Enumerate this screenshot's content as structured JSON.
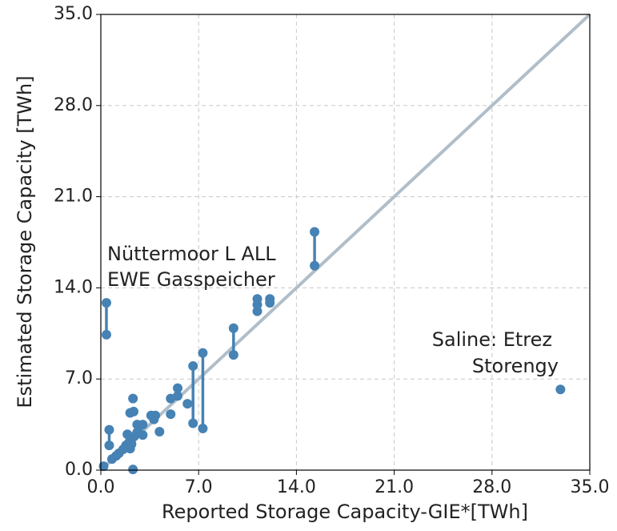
{
  "chart_data": {
    "type": "scatter",
    "xlabel": "Reported Storage Capacity-GIE*[TWh]",
    "ylabel": "Estimated Storage Capacity [TWh]",
    "annotations": [
      "Nüttermoor L ALL",
      "EWE Gasspeicher",
      "Saline: Etrez",
      "Storengy"
    ],
    "color": "#4682b4",
    "identity_line": true,
    "identity_color": "#b0bec9",
    "grid": true,
    "xlim": [
      0,
      35
    ],
    "ylim": [
      0,
      35
    ],
    "xticks": [
      {
        "value": 0,
        "label": "0.0"
      },
      {
        "value": 7,
        "label": "7.0"
      },
      {
        "value": 14,
        "label": "14.0"
      },
      {
        "value": 21,
        "label": "21.0"
      },
      {
        "value": 28,
        "label": "28.0"
      },
      {
        "value": 35,
        "label": "35.0"
      }
    ],
    "yticks": [
      {
        "value": 0,
        "label": "0.0"
      },
      {
        "value": 7,
        "label": "7.0"
      },
      {
        "value": 14,
        "label": "14.0"
      },
      {
        "value": 21,
        "label": "21.0"
      },
      {
        "value": 28,
        "label": "28.0"
      },
      {
        "value": 35,
        "label": "35.0"
      }
    ],
    "x": [
      32.9,
      0.2,
      2.3,
      2.3,
      2.1,
      2.35,
      5.0,
      5.0,
      5.5,
      5.5,
      6.2,
      3.6,
      3.9,
      3.8,
      4.2,
      2.6,
      3.0,
      3.0,
      0.8,
      1.1,
      1.3,
      1.6,
      1.8,
      2.0,
      2.2,
      2.4,
      2.6,
      1.9,
      2.1,
      2.2,
      2.7,
      11.2
    ],
    "y": [
      6.2,
      0.3,
      0.05,
      5.5,
      4.4,
      4.5,
      5.5,
      4.3,
      6.3,
      5.7,
      5.1,
      4.2,
      4.2,
      3.9,
      2.95,
      3.5,
      3.5,
      2.7,
      0.85,
      1.1,
      1.3,
      1.6,
      1.9,
      2.1,
      2.4,
      2.6,
      2.9,
      2.75,
      1.65,
      2.0,
      2.9,
      12.7
    ],
    "intervals": {
      "x": [
        0.4,
        15.3,
        9.5,
        7.3,
        6.6,
        0.6,
        11.2,
        12.1
      ],
      "low": [
        10.4,
        15.7,
        8.85,
        3.2,
        3.6,
        1.9,
        12.2,
        12.85
      ],
      "high": [
        12.85,
        18.3,
        10.9,
        9.0,
        8.0,
        3.1,
        13.15,
        13.15
      ]
    }
  }
}
